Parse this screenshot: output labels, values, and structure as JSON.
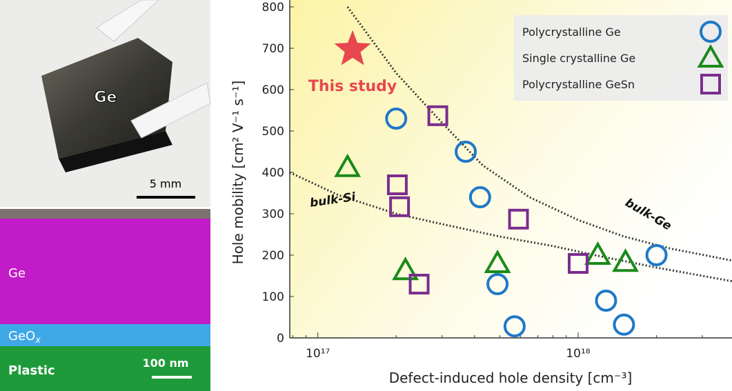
{
  "panels": {
    "photo": {
      "film_label": "Ge",
      "scale_bar": "5 mm"
    },
    "cross_section": {
      "layers": [
        "Ge",
        {
          "base": "GeO",
          "sub": "x"
        },
        "Plastic"
      ],
      "scale_bar": "100 nm"
    }
  },
  "chart_data": {
    "type": "scatter",
    "xlabel": "Defect-induced hole density [cm⁻³]",
    "ylabel": "Hole mobility [cm² V⁻¹ s⁻¹]",
    "xscale": "log",
    "xlim": [
      7.8e+16,
      3.9e+18
    ],
    "xticks": [
      {
        "value": 1e+17,
        "label": "10¹⁷"
      },
      {
        "value": 1e+18,
        "label": "10¹⁸"
      }
    ],
    "ylim": [
      0,
      800
    ],
    "yticks": [
      0,
      100,
      200,
      300,
      400,
      500,
      600,
      700,
      800
    ],
    "legend": "top-right",
    "series": [
      {
        "name": "Polycrystalline Ge",
        "color": "#1f78c8",
        "marker": "circle",
        "x": [
          2e+17,
          3.7e+17,
          4.2e+17,
          4.9e+17,
          5.7e+17,
          1.28e+18,
          1.5e+18,
          2e+18
        ],
        "values": [
          530,
          450,
          340,
          130,
          28,
          90,
          32,
          200
        ]
      },
      {
        "name": "Single crystalline Ge",
        "color": "#1a8a1a",
        "marker": "triangle",
        "x": [
          1.3e+17,
          2.17e+17,
          4.9e+17,
          1.19e+18,
          1.52e+18
        ],
        "values": [
          412,
          163,
          180,
          200,
          183
        ]
      },
      {
        "name": "Polycrystalline GeSn",
        "color": "#7b2d8e",
        "marker": "square",
        "x": [
          2.89e+17,
          2.02e+17,
          2.06e+17,
          5.9e+17,
          2.45e+17,
          1e+18
        ],
        "values": [
          537,
          370,
          317,
          287,
          130,
          180
        ]
      }
    ],
    "highlight": {
      "label": "This study",
      "color": "#e8474f",
      "marker": "star",
      "x": 1.36e+17,
      "value": 697
    },
    "curves": [
      {
        "label": "bulk-Ge",
        "x": [
          1.3e+17,
          2e+17,
          3e+17,
          4.3e+17,
          6.5e+17,
          1e+18,
          1.5e+18,
          2.3e+18,
          3.9e+18
        ],
        "values": [
          800,
          640,
          520,
          417,
          340,
          285,
          245,
          215,
          187
        ]
      },
      {
        "label": "bulk-Si",
        "x": [
          7.8e+16,
          1.2e+17,
          2e+17,
          3e+17,
          5e+17,
          8e+17,
          1.2e+18,
          2e+18,
          3.9e+18
        ],
        "values": [
          400,
          345,
          300,
          275,
          245,
          222,
          198,
          170,
          137
        ]
      }
    ]
  }
}
